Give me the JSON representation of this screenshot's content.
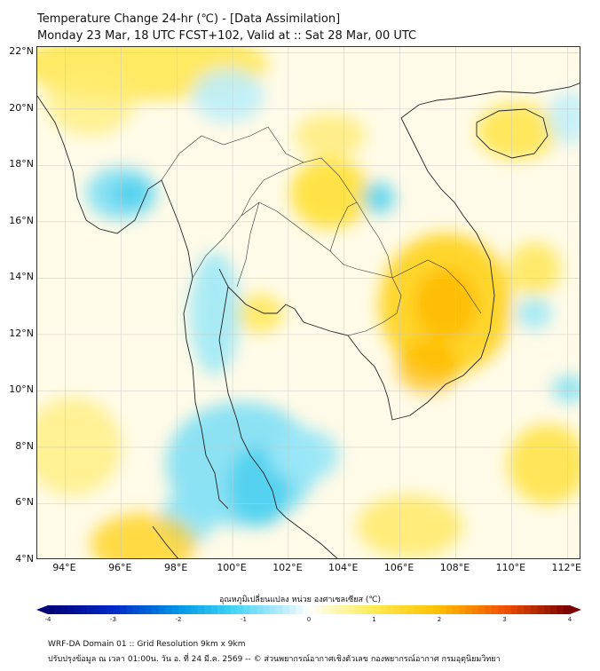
{
  "title": {
    "line1": "Temperature Change 24-hr (℃) - [Data Assimilation]",
    "line2": "Monday 23 Mar, 18 UTC FCST+102, Valid at :: Sat 28 Mar, 00 UTC"
  },
  "map": {
    "lon_range": [
      93,
      112.5
    ],
    "lat_range": [
      4,
      22.2
    ],
    "lat_ticks": [
      {
        "lat": 22,
        "label": "22°N"
      },
      {
        "lat": 20,
        "label": "20°N"
      },
      {
        "lat": 18,
        "label": "18°N"
      },
      {
        "lat": 16,
        "label": "16°N"
      },
      {
        "lat": 14,
        "label": "14°N"
      },
      {
        "lat": 12,
        "label": "12°N"
      },
      {
        "lat": 10,
        "label": "10°N"
      },
      {
        "lat": 8,
        "label": "8°N"
      },
      {
        "lat": 6,
        "label": "6°N"
      },
      {
        "lat": 4,
        "label": "4°N"
      }
    ],
    "lon_ticks": [
      {
        "lon": 94,
        "label": "94°E"
      },
      {
        "lon": 96,
        "label": "96°E"
      },
      {
        "lon": 98,
        "label": "98°E"
      },
      {
        "lon": 100,
        "label": "100°E"
      },
      {
        "lon": 102,
        "label": "102°E"
      },
      {
        "lon": 104,
        "label": "104°E"
      },
      {
        "lon": 106,
        "label": "106°E"
      },
      {
        "lon": 108,
        "label": "108°E"
      },
      {
        "lon": 110,
        "label": "110°E"
      },
      {
        "lon": 112,
        "label": "112°E"
      }
    ],
    "colors": {
      "land_line": "#222222",
      "grid": "#c8c8c8",
      "warm": "#ffe033",
      "warm_strong": "#ffb000",
      "cool": "#59d4f0",
      "cool_light": "#bdeefa"
    }
  },
  "colorbar": {
    "label": "อุณหภูมิเปลี่ยนแปลง หน่วย องศาเซลเซียส (℃)",
    "min": -4,
    "max": 4,
    "ticks": [
      "-4",
      "-3",
      "-2",
      "-1",
      "0",
      "1",
      "2",
      "3",
      "4"
    ]
  },
  "footer": {
    "line1": "WRF-DA Domain 01 :: Grid Resolution 9km x 9km",
    "line2": "ปรับปรุงข้อมูล ณ เวลา 01:00น. วัน อ. ที่ 24 มี.ค. 2569 -- © ส่วนพยากรณ์อากาศเชิงตัวเลข กองพยากรณ์อากาศ กรมอุตุนิยมวิทยา"
  }
}
